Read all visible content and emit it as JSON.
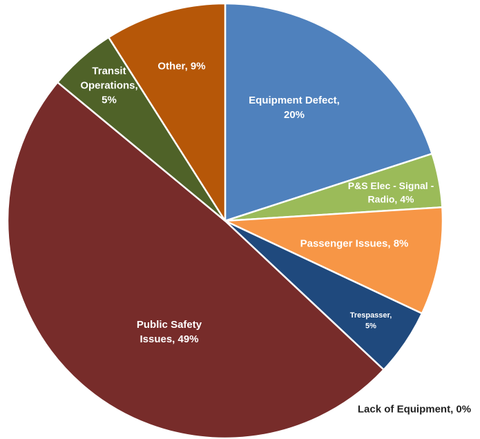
{
  "chart_data": {
    "type": "pie",
    "title": "",
    "start_angle_deg": 0,
    "direction": "clockwise",
    "legend": "none",
    "slices": [
      {
        "label_lines": [
          "Equipment Defect,",
          "20%"
        ],
        "category": "Equipment Defect",
        "value": 20,
        "color": "#4F81BD"
      },
      {
        "label_lines": [
          "P&S Elec - Signal -",
          "Radio, 4%"
        ],
        "category": "P&S Elec - Signal - Radio",
        "value": 4,
        "color": "#9BBB59"
      },
      {
        "label_lines": [
          "Passenger Issues, 8%"
        ],
        "category": "Passenger Issues",
        "value": 8,
        "color": "#F79646"
      },
      {
        "label_lines": [
          "Trespasser,",
          "5%"
        ],
        "category": "Trespasser",
        "value": 5,
        "color": "#1F497D"
      },
      {
        "label_lines": [
          "Lack of Equipment, 0%"
        ],
        "category": "Lack of Equipment",
        "value": 0,
        "color": "#C0504D"
      },
      {
        "label_lines": [
          "Public Safety",
          "Issues, 49%"
        ],
        "category": "Public Safety Issues",
        "value": 49,
        "color": "#772C2A"
      },
      {
        "label_lines": [
          "Transit",
          "Operations,",
          "5%"
        ],
        "category": "Transit Operations",
        "value": 5,
        "color": "#4F6228"
      },
      {
        "label_lines": [
          "Other, 9%"
        ],
        "category": "Other",
        "value": 9,
        "color": "#B65708"
      }
    ]
  }
}
